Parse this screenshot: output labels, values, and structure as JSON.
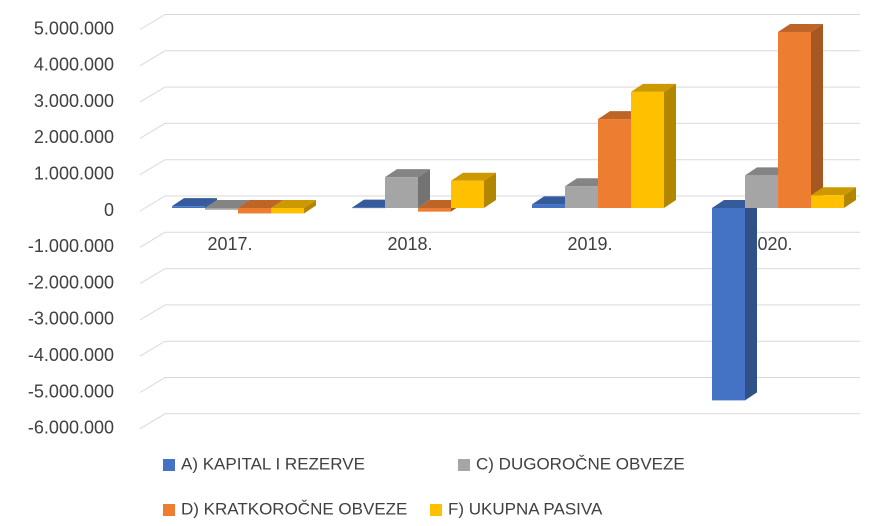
{
  "chart_data": {
    "type": "bar3d",
    "categories": [
      "2017.",
      "2018.",
      "2019.",
      "2020."
    ],
    "series": [
      {
        "name": "A) KAPITAL I REZERVE",
        "color": "#4472c4",
        "values": [
          50000,
          10000,
          100000,
          -5300000
        ]
      },
      {
        "name": "C) DUGOROČNE OBVEZE",
        "color": "#a5a5a5",
        "values": [
          -50000,
          850000,
          600000,
          900000
        ]
      },
      {
        "name": "D) KRATKOROČNE OBVEZE",
        "color": "#ed7d31",
        "values": [
          -150000,
          -100000,
          2450000,
          4850000
        ]
      },
      {
        "name": "F) UKUPNA PASIVA",
        "color": "#ffc000",
        "values": [
          -150000,
          750000,
          3200000,
          350000
        ]
      }
    ],
    "ylim": [
      -6000000,
      5000000
    ],
    "yticks": [
      {
        "value": -6000000,
        "label": "-6.000.000"
      },
      {
        "value": -5000000,
        "label": "-5.000.000"
      },
      {
        "value": -4000000,
        "label": "-4.000.000"
      },
      {
        "value": -3000000,
        "label": "-3.000.000"
      },
      {
        "value": -2000000,
        "label": "-2.000.000"
      },
      {
        "value": -1000000,
        "label": "-1.000.000"
      },
      0,
      {
        "value": 1000000,
        "label": "1.000.000"
      },
      {
        "value": 2000000,
        "label": "2.000.000"
      },
      {
        "value": 3000000,
        "label": "3.000.000"
      },
      {
        "value": 4000000,
        "label": "4.000.000"
      },
      {
        "value": 5000000,
        "label": "5.000.000"
      }
    ],
    "grid": true,
    "legend": "bottom"
  }
}
